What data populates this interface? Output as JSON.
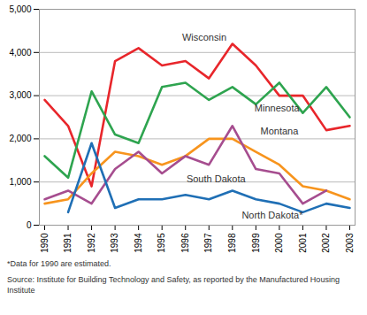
{
  "chart_data": {
    "type": "line",
    "x": [
      1990,
      1991,
      1992,
      1993,
      1994,
      1995,
      1996,
      1997,
      1998,
      1999,
      2000,
      2001,
      2002,
      2003
    ],
    "series": [
      {
        "name": "Wisconsin",
        "color": "#e8262b",
        "values": [
          2900,
          2300,
          900,
          3800,
          4100,
          3700,
          3800,
          3400,
          4200,
          3700,
          3000,
          3000,
          2200,
          2300
        ]
      },
      {
        "name": "Minnesota",
        "color": "#2ea44f",
        "values": [
          1600,
          1100,
          3100,
          2100,
          1900,
          3200,
          3300,
          2900,
          3200,
          2800,
          3300,
          2600,
          3200,
          2500
        ]
      },
      {
        "name": "Montana",
        "color": "#f7941d",
        "values": [
          500,
          600,
          1200,
          1700,
          1600,
          1400,
          1600,
          2000,
          2000,
          1700,
          1400,
          900,
          800,
          600
        ]
      },
      {
        "name": "South Dakota",
        "color": "#a64d8f",
        "values": [
          600,
          800,
          500,
          1300,
          1700,
          1200,
          1600,
          1400,
          2300,
          1300,
          1200,
          500,
          800,
          null
        ]
      },
      {
        "name": "North Dakota*",
        "color": "#1f6fb5",
        "values": [
          null,
          300,
          1900,
          400,
          600,
          600,
          700,
          600,
          800,
          600,
          500,
          300,
          500,
          400
        ]
      }
    ],
    "xlim": [
      1990,
      2003
    ],
    "xticks": [
      1990,
      1991,
      1992,
      1993,
      1994,
      1995,
      1996,
      1997,
      1998,
      1999,
      2000,
      2001,
      2002,
      2003
    ],
    "ylim": [
      0,
      5000
    ],
    "yticks": [
      0,
      {
        "value": 1000,
        "label": "1,000"
      },
      {
        "value": 2000,
        "label": "2,000"
      },
      {
        "value": 3000,
        "label": "3,000"
      },
      {
        "value": 4000,
        "label": "4,000"
      },
      {
        "value": 5000,
        "label": "5,000"
      }
    ],
    "grid": true,
    "annotations": [
      "*Data for 1990 are estimated.",
      "Source: Institute for Building Technology and Safety, as reported by the Manufactured Housing Institute"
    ]
  }
}
